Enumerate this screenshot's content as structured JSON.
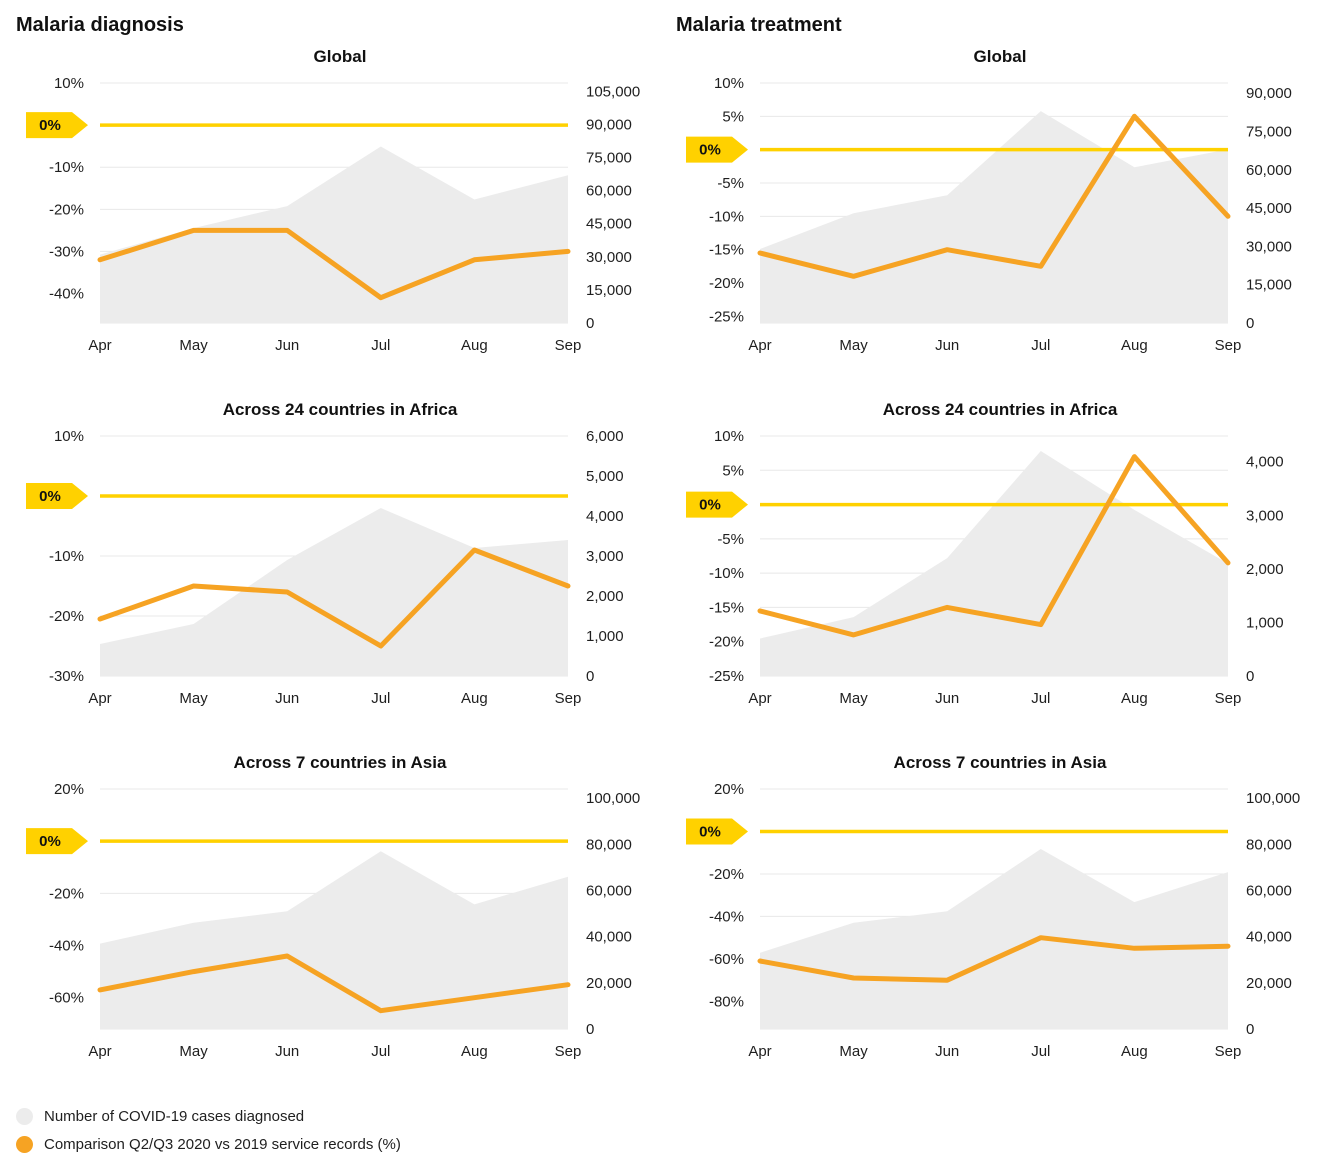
{
  "columns": [
    {
      "title": "Malaria diagnosis"
    },
    {
      "title": "Malaria treatment"
    }
  ],
  "zero_badge_label": "0%",
  "colors": {
    "area": "#ECECEC",
    "comparison_line": "#F6A323",
    "zero_line": "#FFD100",
    "gridline": "#E8E8E8",
    "text": "#1F1F1F"
  },
  "legend": {
    "items": [
      {
        "label": "Number of COVID-19 cases diagnosed",
        "swatch": "area",
        "color": "#ECECEC"
      },
      {
        "label": "Comparison Q2/Q3 2020 vs 2019 service records (%)",
        "swatch": "line",
        "color": "#F6A323"
      }
    ]
  },
  "chart_data": [
    {
      "type": "area+line",
      "col": 0,
      "group": "Malaria diagnosis",
      "title": "Global",
      "categories": [
        "Apr",
        "May",
        "Jun",
        "Jul",
        "Aug",
        "Sep"
      ],
      "left_axis": {
        "format": "percent",
        "range": [
          -47,
          10
        ],
        "ticks": [
          10,
          0,
          -10,
          -20,
          -30,
          -40
        ]
      },
      "right_axis": {
        "format": "number",
        "range": [
          0,
          108800
        ],
        "ticks": [
          105000,
          90000,
          75000,
          60000,
          45000,
          30000,
          15000,
          0
        ]
      },
      "series": [
        {
          "name": "Number of COVID-19 cases diagnosed",
          "type": "area",
          "axis": "right",
          "values": [
            31000,
            43000,
            53000,
            80000,
            56000,
            67000
          ]
        },
        {
          "name": "Comparison Q2/Q3 2020 vs 2019 service records (%)",
          "type": "line",
          "axis": "left",
          "values": [
            -32,
            -25,
            -25,
            -41,
            -32,
            -30
          ]
        }
      ],
      "zero_line": {
        "axis": "left",
        "value": 0,
        "badge": "0%"
      }
    },
    {
      "type": "area+line",
      "col": 1,
      "group": "Malaria treatment",
      "title": "Global",
      "categories": [
        "Apr",
        "May",
        "Jun",
        "Jul",
        "Aug",
        "Sep"
      ],
      "left_axis": {
        "format": "percent",
        "range": [
          -26,
          10
        ],
        "ticks": [
          10,
          5,
          0,
          -5,
          -10,
          -15,
          -20,
          -25
        ]
      },
      "right_axis": {
        "format": "number",
        "range": [
          0,
          94000
        ],
        "ticks": [
          90000,
          75000,
          60000,
          45000,
          30000,
          15000,
          0
        ]
      },
      "series": [
        {
          "name": "Number of COVID-19 cases diagnosed",
          "type": "area",
          "axis": "right",
          "values": [
            29000,
            43000,
            50000,
            83000,
            61000,
            68000
          ]
        },
        {
          "name": "Comparison Q2/Q3 2020 vs 2019 service records (%)",
          "type": "line",
          "axis": "left",
          "values": [
            -15.5,
            -19,
            -15,
            -17.5,
            5,
            -10
          ]
        }
      ],
      "zero_line": {
        "axis": "left",
        "value": 0,
        "badge": "0%"
      }
    },
    {
      "type": "area+line",
      "col": 0,
      "group": "Malaria diagnosis",
      "title": "Across 24 countries in Africa",
      "categories": [
        "Apr",
        "May",
        "Jun",
        "Jul",
        "Aug",
        "Sep"
      ],
      "left_axis": {
        "format": "percent",
        "range": [
          -30,
          10
        ],
        "ticks": [
          10,
          0,
          -10,
          -20,
          -30
        ]
      },
      "right_axis": {
        "format": "number",
        "range": [
          0,
          6000
        ],
        "ticks": [
          6000,
          5000,
          4000,
          3000,
          2000,
          1000,
          0
        ]
      },
      "series": [
        {
          "name": "Number of COVID-19 cases diagnosed",
          "type": "area",
          "axis": "right",
          "values": [
            800,
            1300,
            2900,
            4200,
            3200,
            3400
          ]
        },
        {
          "name": "Comparison Q2/Q3 2020 vs 2019 service records (%)",
          "type": "line",
          "axis": "left",
          "values": [
            -20.5,
            -15,
            -16,
            -25,
            -9,
            -15
          ]
        }
      ],
      "zero_line": {
        "axis": "left",
        "value": 0,
        "badge": "0%"
      }
    },
    {
      "type": "area+line",
      "col": 1,
      "group": "Malaria treatment",
      "title": "Across 24 countries in Africa",
      "categories": [
        "Apr",
        "May",
        "Jun",
        "Jul",
        "Aug",
        "Sep"
      ],
      "left_axis": {
        "format": "percent",
        "range": [
          -25,
          10
        ],
        "ticks": [
          10,
          5,
          0,
          -5,
          -10,
          -15,
          -20,
          -25
        ]
      },
      "right_axis": {
        "format": "number",
        "range": [
          0,
          4480
        ],
        "ticks": [
          4000,
          3000,
          2000,
          1000,
          0
        ]
      },
      "series": [
        {
          "name": "Number of COVID-19 cases diagnosed",
          "type": "area",
          "axis": "right",
          "values": [
            700,
            1100,
            2200,
            4200,
            3100,
            2100
          ]
        },
        {
          "name": "Comparison Q2/Q3 2020 vs 2019 service records (%)",
          "type": "line",
          "axis": "left",
          "values": [
            -15.5,
            -19,
            -15,
            -17.5,
            7,
            -8.5
          ]
        }
      ],
      "zero_line": {
        "axis": "left",
        "value": 0,
        "badge": "0%"
      }
    },
    {
      "type": "area+line",
      "col": 0,
      "group": "Malaria diagnosis",
      "title": "Across 7 countries in Asia",
      "categories": [
        "Apr",
        "May",
        "Jun",
        "Jul",
        "Aug",
        "Sep"
      ],
      "left_axis": {
        "format": "percent",
        "range": [
          -72,
          20
        ],
        "ticks": [
          20,
          0,
          -20,
          -40,
          -60
        ]
      },
      "right_axis": {
        "format": "number",
        "range": [
          0,
          104000
        ],
        "ticks": [
          100000,
          80000,
          60000,
          40000,
          20000,
          0
        ]
      },
      "series": [
        {
          "name": "Number of COVID-19 cases diagnosed",
          "type": "area",
          "axis": "right",
          "values": [
            37000,
            46000,
            51000,
            77000,
            54000,
            66000
          ]
        },
        {
          "name": "Comparison Q2/Q3 2020 vs 2019 service records (%)",
          "type": "line",
          "axis": "left",
          "values": [
            -57,
            -50,
            -44,
            -65,
            -60,
            -55
          ]
        }
      ],
      "zero_line": {
        "axis": "left",
        "value": 0,
        "badge": "0%"
      }
    },
    {
      "type": "area+line",
      "col": 1,
      "group": "Malaria treatment",
      "title": "Across 7 countries in Asia",
      "categories": [
        "Apr",
        "May",
        "Jun",
        "Jul",
        "Aug",
        "Sep"
      ],
      "left_axis": {
        "format": "percent",
        "range": [
          -93,
          20
        ],
        "ticks": [
          20,
          0,
          -20,
          -40,
          -60,
          -80
        ]
      },
      "right_axis": {
        "format": "number",
        "range": [
          0,
          104000
        ],
        "ticks": [
          100000,
          80000,
          60000,
          40000,
          20000,
          0
        ]
      },
      "series": [
        {
          "name": "Number of COVID-19 cases diagnosed",
          "type": "area",
          "axis": "right",
          "values": [
            33000,
            46000,
            51000,
            78000,
            55000,
            68000
          ]
        },
        {
          "name": "Comparison Q2/Q3 2020 vs 2019 service records (%)",
          "type": "line",
          "axis": "left",
          "values": [
            -61,
            -69,
            -70,
            -50,
            -55,
            -54
          ]
        }
      ],
      "zero_line": {
        "axis": "left",
        "value": 0,
        "badge": "0%"
      }
    }
  ]
}
